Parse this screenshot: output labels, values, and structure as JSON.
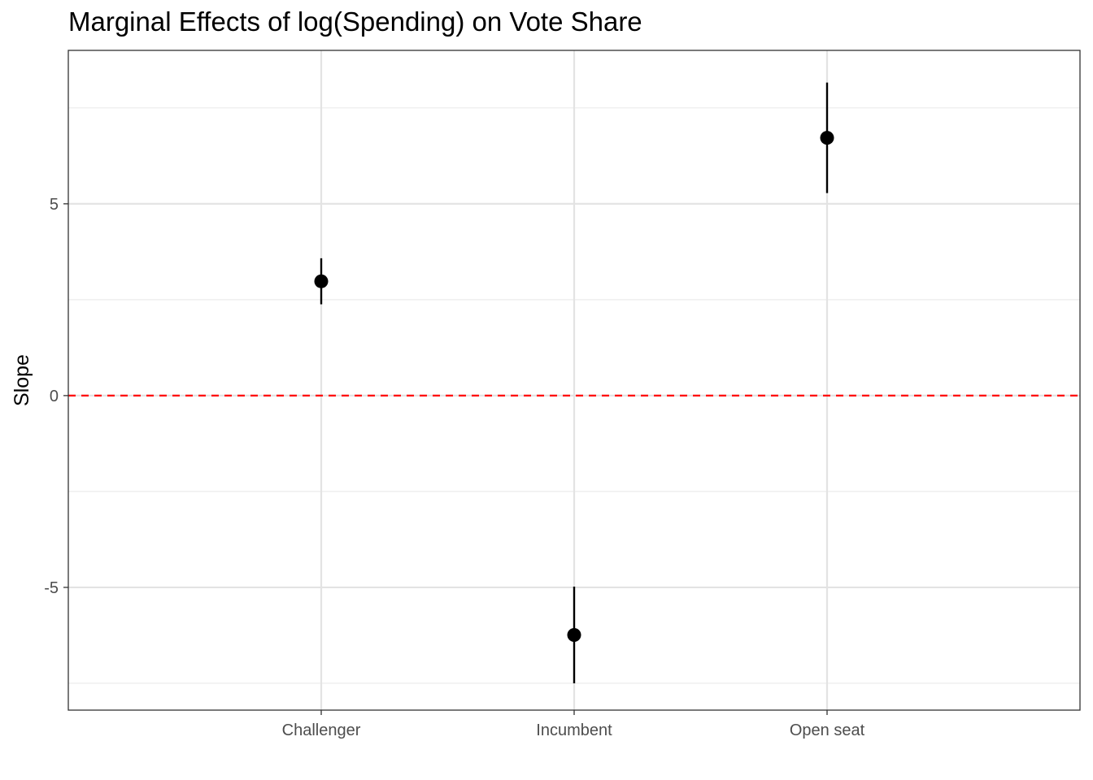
{
  "chart_data": {
    "type": "pointrange",
    "title": "Marginal Effects of log(Spending) on Vote Share",
    "xlabel": "",
    "ylabel": "Slope",
    "categories": [
      "Challenger",
      "Incumbent",
      "Open seat"
    ],
    "estimates": [
      2.98,
      -6.24,
      6.72
    ],
    "ci_low": [
      2.38,
      -7.5,
      5.28
    ],
    "ci_high": [
      3.58,
      -4.98,
      8.16
    ],
    "ylim": [
      -8.2,
      9.0
    ],
    "yticks": [
      -5,
      0,
      5
    ],
    "reference_line": {
      "y": 0,
      "style": "dashed",
      "color": "#ff0000"
    },
    "grid": true,
    "theme": "bw",
    "point_color": "#000000"
  }
}
